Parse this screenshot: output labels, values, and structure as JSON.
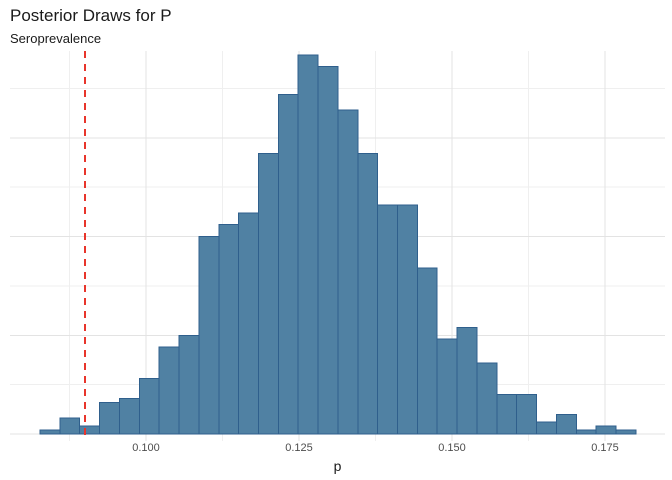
{
  "header": {
    "title": "Posterior Draws for P",
    "subtitle": "Seroprevalence"
  },
  "chart_data": {
    "type": "bar",
    "subtype": "histogram",
    "title": "Posterior Draws for P",
    "subtitle": "Seroprevalence",
    "xlabel": "p",
    "ylabel": "",
    "y_axis_labels_visible": false,
    "x_ticks": [
      {
        "value": 0.1,
        "label": "0.100"
      },
      {
        "value": 0.125,
        "label": "0.125"
      },
      {
        "value": 0.15,
        "label": "0.150"
      },
      {
        "value": 0.175,
        "label": "0.175"
      }
    ],
    "x_minor_gridline_values": [
      0.0875,
      0.1125,
      0.1375,
      0.1625
    ],
    "y_major_gridline_counts": [
      0,
      25,
      50,
      75
    ],
    "y_minor_gridline_counts": [
      12.5,
      37.5,
      62.5,
      87.5
    ],
    "xlim": [
      0.0778,
      0.1849
    ],
    "ylim": [
      0,
      98
    ],
    "grid": "on",
    "legend": "none",
    "bins": {
      "start": 0.08268,
      "width": 0.0032454,
      "counts": [
        1,
        4,
        2,
        8,
        9,
        14,
        22,
        25,
        50,
        53,
        56,
        71,
        86,
        96,
        93,
        82,
        71,
        58,
        58,
        42,
        24,
        27,
        18,
        10,
        10,
        3,
        5,
        1,
        2,
        1
      ]
    },
    "reference_line": {
      "orientation": "vertical",
      "value": 0.09,
      "style": "dashed",
      "color": "#e8352b"
    },
    "colors": {
      "bar_fill": "#5081a3",
      "bar_stroke": "#2f5f8c",
      "gridline_major": "#e3e3e3",
      "gridline_minor": "#efefef",
      "background": "#ffffff"
    }
  }
}
